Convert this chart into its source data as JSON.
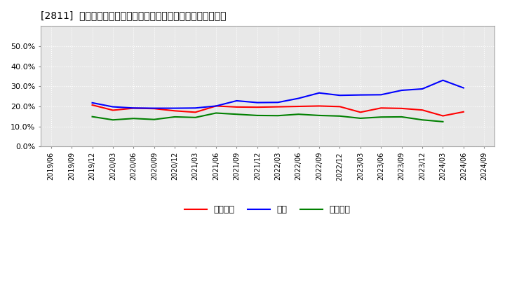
{
  "title": "[2811]  売上債権、在庫、買入債務の総資産に対する比率の推移",
  "legend_labels": [
    "売上債権",
    "在庫",
    "買入債務"
  ],
  "line_colors": [
    "#ff0000",
    "#0000ff",
    "#008000"
  ],
  "background_color": "#ffffff",
  "plot_bg_color": "#e8e8e8",
  "grid_color": "#ffffff",
  "ylim": [
    0.0,
    0.6
  ],
  "yticks": [
    0.0,
    0.1,
    0.2,
    0.3,
    0.4,
    0.5
  ],
  "dates": [
    "2019/06",
    "2019/09",
    "2019/12",
    "2020/03",
    "2020/06",
    "2020/09",
    "2020/12",
    "2021/03",
    "2021/06",
    "2021/09",
    "2021/12",
    "2022/03",
    "2022/06",
    "2022/09",
    "2022/12",
    "2023/03",
    "2023/06",
    "2023/09",
    "2023/12",
    "2024/03",
    "2024/06",
    "2024/09"
  ],
  "uriage": [
    null,
    null,
    0.207,
    0.181,
    0.191,
    0.189,
    0.178,
    0.171,
    0.202,
    0.197,
    0.196,
    0.198,
    0.2,
    0.202,
    0.199,
    0.171,
    0.192,
    0.19,
    0.182,
    0.153,
    0.173,
    null
  ],
  "zaiko": [
    null,
    null,
    0.218,
    0.198,
    0.192,
    0.191,
    0.191,
    0.192,
    0.202,
    0.228,
    0.219,
    0.22,
    0.24,
    0.267,
    0.255,
    0.257,
    0.258,
    0.28,
    0.287,
    0.33,
    0.292,
    null
  ],
  "kaiire": [
    null,
    null,
    0.149,
    0.133,
    0.14,
    0.135,
    0.148,
    0.145,
    0.167,
    0.161,
    0.155,
    0.154,
    0.161,
    0.155,
    0.152,
    0.141,
    0.147,
    0.148,
    0.133,
    0.124,
    null,
    null
  ]
}
